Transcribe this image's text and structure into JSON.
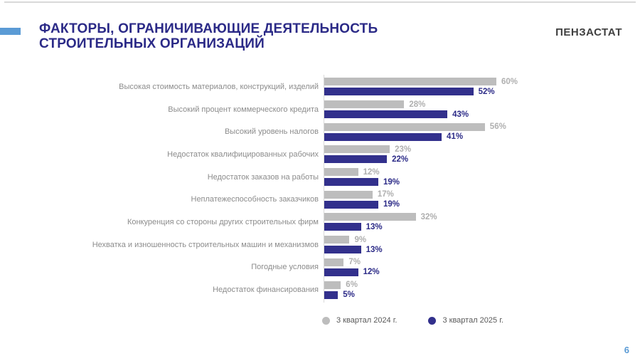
{
  "header": {
    "title_line1": "ФАКТОРЫ, ОГРАНИЧИВАЮЩИЕ ДЕЯТЕЛЬНОСТЬ",
    "title_line2": "СТРОИТЕЛЬНЫХ ОРГАНИЗАЦИЙ",
    "logo": "ПЕНЗАСТАТ"
  },
  "footer": {
    "page_number": "6"
  },
  "colors": {
    "title": "#2b2a87",
    "accent_dash": "#5b9bd5",
    "series_2024": "#bdbdbd",
    "series_2025": "#32308c",
    "category_label": "#8c8c8c",
    "value_label_2024": "#afafaf",
    "value_label_2025": "#2b2a87",
    "axis_line": "#d9d9d9",
    "page_number": "#5b9bd5"
  },
  "chart_data": {
    "type": "bar",
    "orientation": "horizontal",
    "title": "ФАКТОРЫ, ОГРАНИЧИВАЮЩИЕ ДЕЯТЕЛЬНОСТЬ СТРОИТЕЛЬНЫХ ОРГАНИЗАЦИЙ",
    "xlabel": "",
    "ylabel": "",
    "xlim": [
      0,
      100
    ],
    "grid": false,
    "legend_position": "bottom",
    "value_suffix": "%",
    "categories": [
      "Высокая стоимость материалов, конструкций, изделий",
      "Высокий процент коммерческого кредита",
      "Высокий уровень налогов",
      "Недостаток квалифицированных рабочих",
      "Недостаток заказов на работы",
      "Неплатежеспособность заказчиков",
      "Конкуренция со стороны других строительных фирм",
      "Нехватка и изношенность строительных машин и механизмов",
      "Погодные условия",
      "Недостаток финансирования"
    ],
    "series": [
      {
        "name": "3 квартал 2024 г.",
        "color": "#bdbdbd",
        "values": [
          60,
          28,
          56,
          23,
          12,
          17,
          32,
          9,
          7,
          6
        ]
      },
      {
        "name": "3 квартал 2025 г.",
        "color": "#32308c",
        "values": [
          52,
          43,
          41,
          22,
          19,
          19,
          13,
          13,
          12,
          5
        ]
      }
    ]
  }
}
